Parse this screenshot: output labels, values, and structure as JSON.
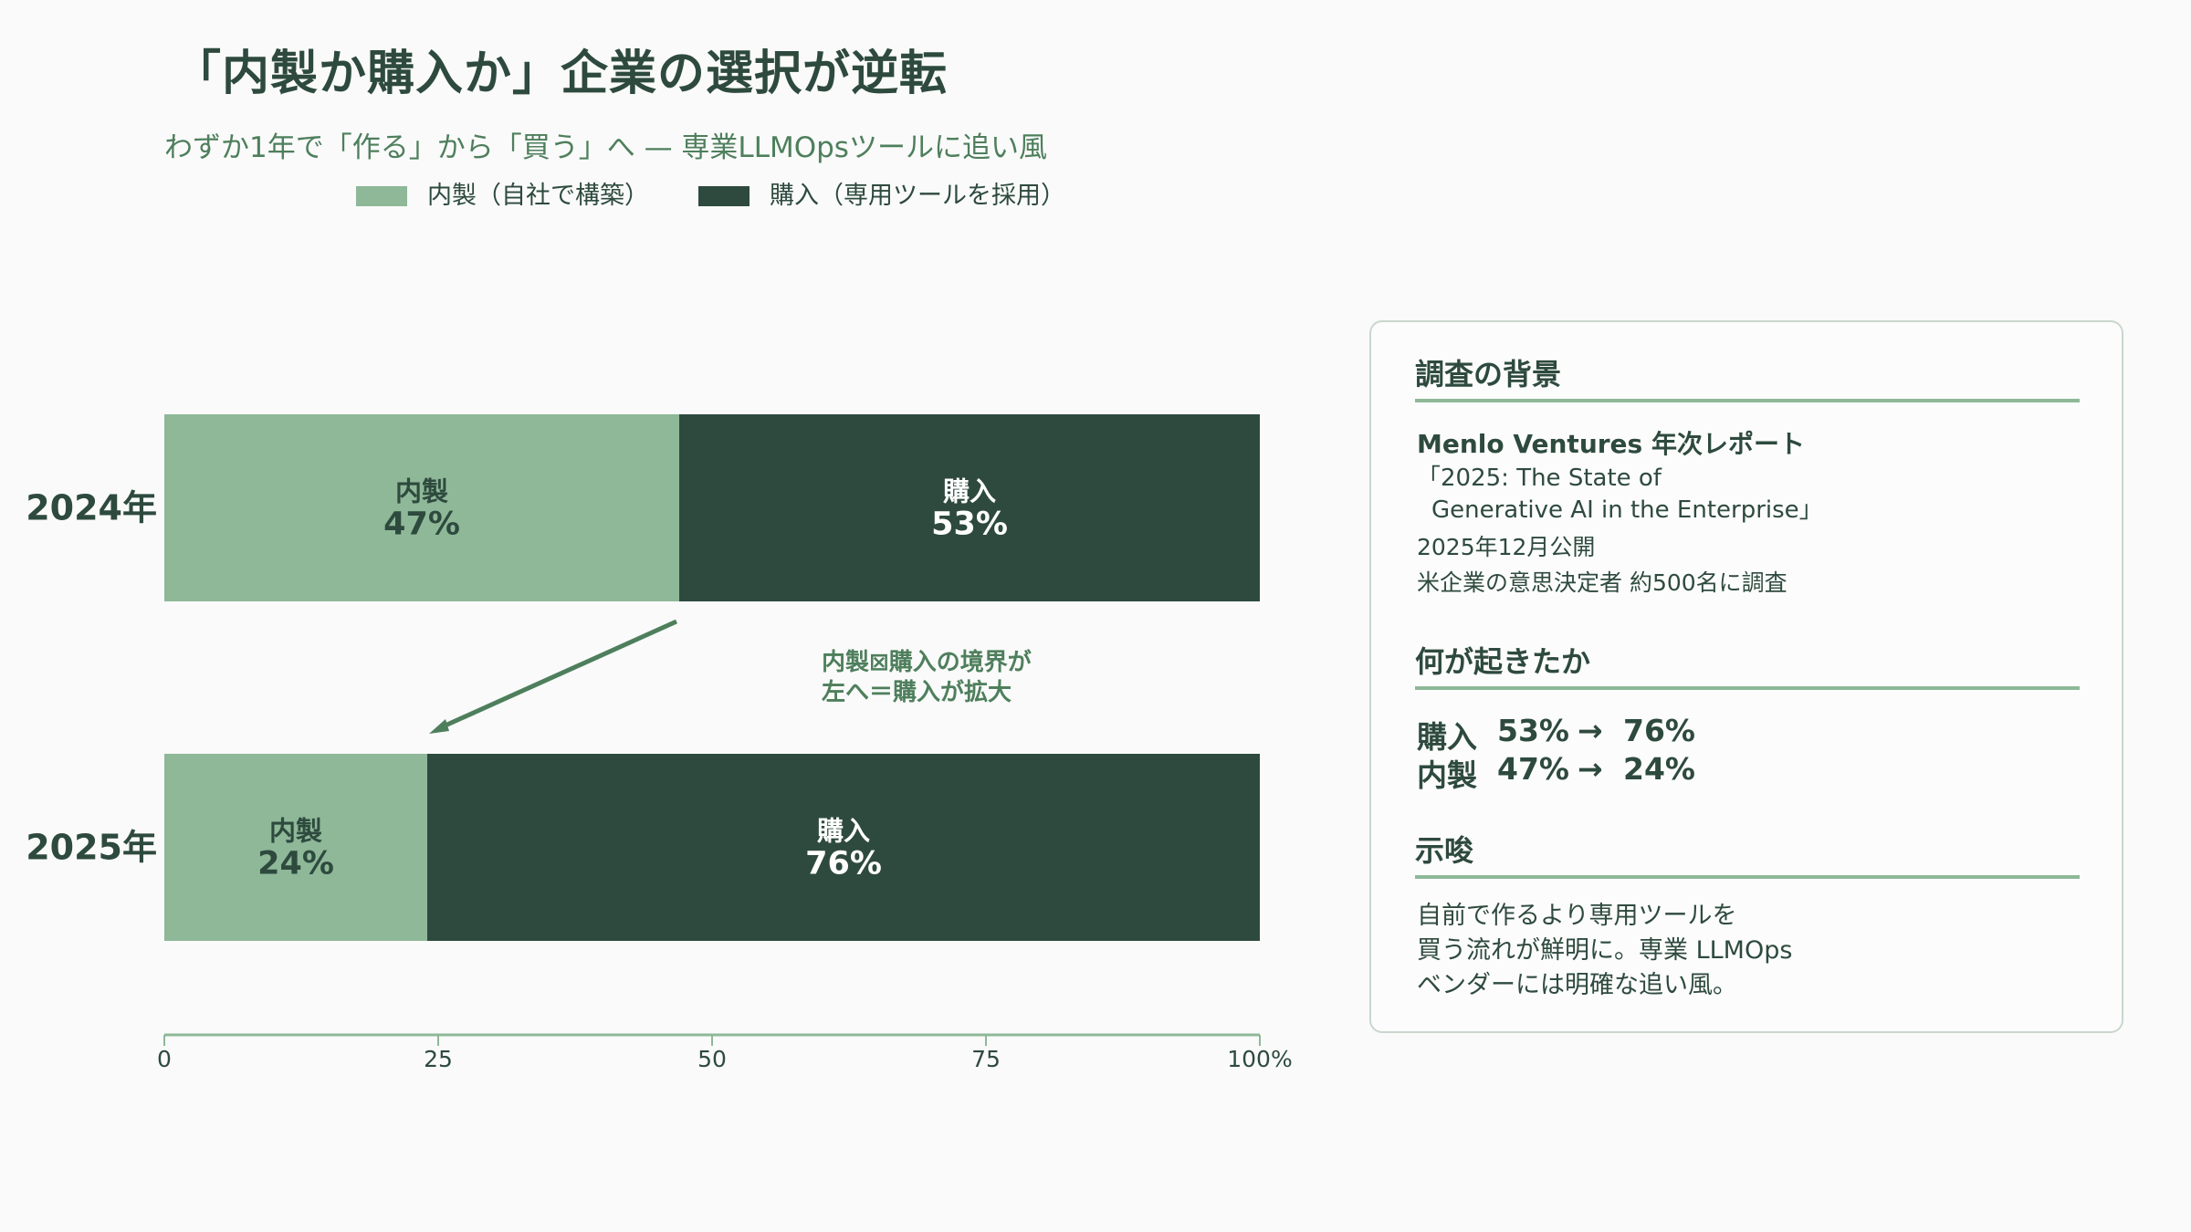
{
  "header": {
    "title": "「内製か購入か」企業の選択が逆転",
    "subtitle": "わずか1年で「作る」から「買う」へ — 専業LLMOpsツールに追い風"
  },
  "legend": [
    {
      "label": "内製（自社で構築）",
      "color": "#8eb898"
    },
    {
      "label": "購入（専用ツールを採用）",
      "color": "#2e4a3e"
    }
  ],
  "chart_data": {
    "type": "bar",
    "orientation": "horizontal-stacked-100",
    "categories": [
      "2024年",
      "2025年"
    ],
    "series": [
      {
        "name": "内製",
        "values": [
          47,
          24
        ],
        "color": "#8eb898",
        "text_color": "#2e4a3e"
      },
      {
        "name": "購入",
        "values": [
          53,
          76
        ],
        "color": "#2e4a3e",
        "text_color": "#ffffff"
      }
    ],
    "value_suffix": "%",
    "xlim": [
      0,
      100
    ],
    "xticks": [
      "0",
      "25",
      "50",
      "75",
      "100%"
    ],
    "annotation": "内製⊠購入の境界が\n左へ＝購入が拡大",
    "colors": {
      "axis": "#8eb898",
      "arrow": "#4e7f5c",
      "annotation": "#4e7f5c"
    }
  },
  "panel": {
    "background_heading": "調査の背景",
    "source_name": "Menlo Ventures 年次レポート",
    "source_title_1": "「2025: The State of",
    "source_title_2": "Generative AI in the Enterprise」",
    "published": "2025年12月公開",
    "respondents": "米企業の意思決定者 約500名に調査",
    "what_heading": "何が起きたか",
    "stats": [
      {
        "label": "購入",
        "from": "53%",
        "arrow": "→",
        "to": "76%"
      },
      {
        "label": "内製",
        "from": "47%",
        "arrow": "→",
        "to": "24%"
      }
    ],
    "implication_heading": "示唆",
    "implication_lines": [
      "自前で作るより専用ツールを",
      "買う流れが鮮明に。専業 LLMOps",
      "ベンダーには明確な追い風。"
    ]
  }
}
